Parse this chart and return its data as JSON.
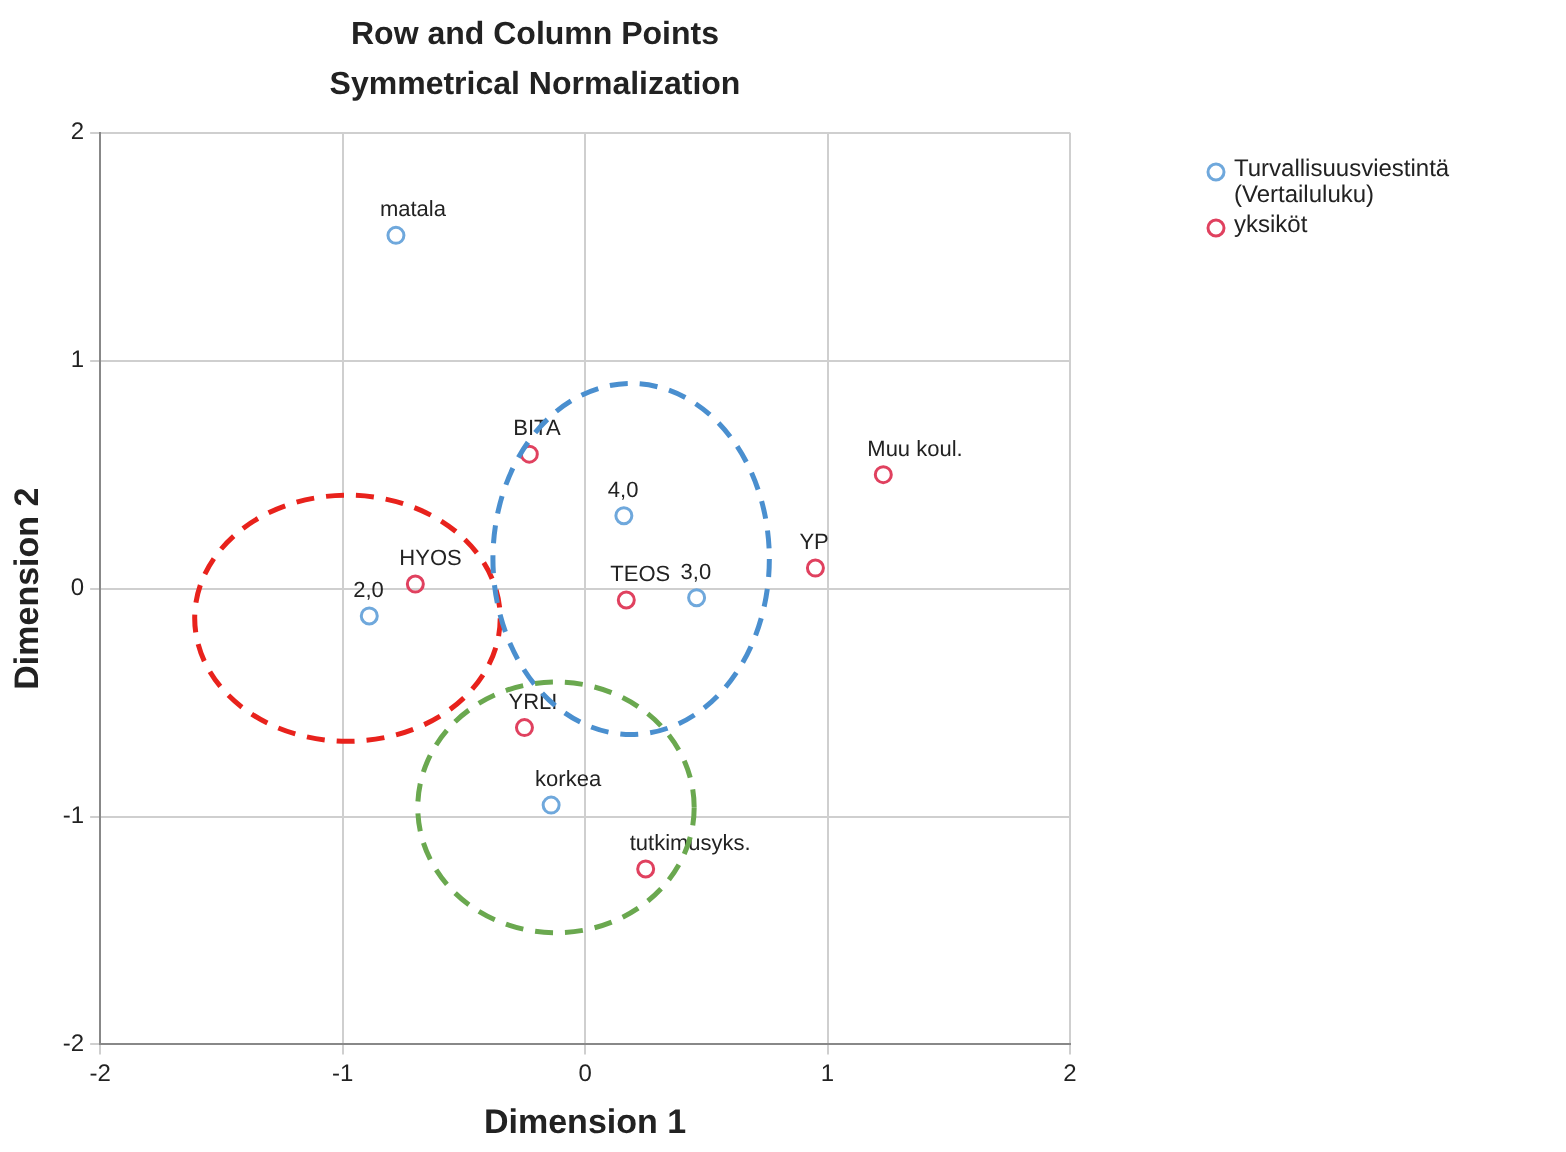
{
  "chart_data": {
    "type": "scatter",
    "title": "Row and Column Points",
    "subtitle": "Symmetrical Normalization",
    "xlabel": "Dimension 1",
    "ylabel": "Dimension 2",
    "xlim": [
      -2,
      2
    ],
    "ylim": [
      -2,
      2
    ],
    "xticks": [
      -2,
      -1,
      0,
      1,
      2
    ],
    "yticks": [
      -2,
      -1,
      0,
      1,
      2
    ],
    "grid": true,
    "legend": "top right",
    "marker": "circle",
    "series": [
      {
        "name": "Turvallisuusviestintä\n(Vertailuluku)",
        "color": "#6fa8dc",
        "x": [
          -0.78,
          0.16,
          0.46,
          -0.89,
          -0.14
        ],
        "values": [
          1.55,
          0.32,
          -0.04,
          -0.12,
          -0.95
        ]
      },
      {
        "name": "yksiköt",
        "color": "#e0415f",
        "x": [
          -0.23,
          1.23,
          0.95,
          0.17,
          -0.7,
          -0.25,
          0.25
        ],
        "values": [
          0.59,
          0.5,
          0.09,
          -0.05,
          0.02,
          -0.61,
          -1.23
        ]
      }
    ],
    "annotations": [
      {
        "text": "matala",
        "x": -0.78,
        "y": 1.55
      },
      {
        "text": "4,0",
        "x": 0.16,
        "y": 0.32
      },
      {
        "text": "3,0",
        "x": 0.46,
        "y": -0.04
      },
      {
        "text": "2,0",
        "x": -0.89,
        "y": -0.12
      },
      {
        "text": "korkea",
        "x": -0.14,
        "y": -0.95
      },
      {
        "text": "BITA",
        "x": -0.23,
        "y": 0.59
      },
      {
        "text": "Muu koul.",
        "x": 1.23,
        "y": 0.5
      },
      {
        "text": "YP",
        "x": 0.95,
        "y": 0.09
      },
      {
        "text": "TEOS",
        "x": 0.17,
        "y": -0.05
      },
      {
        "text": "HYOS",
        "x": -0.7,
        "y": 0.02
      },
      {
        "text": "YRLI",
        "x": -0.25,
        "y": -0.61
      },
      {
        "text": "tutkimusyks.",
        "x": 0.25,
        "y": -1.23
      }
    ]
  }
}
